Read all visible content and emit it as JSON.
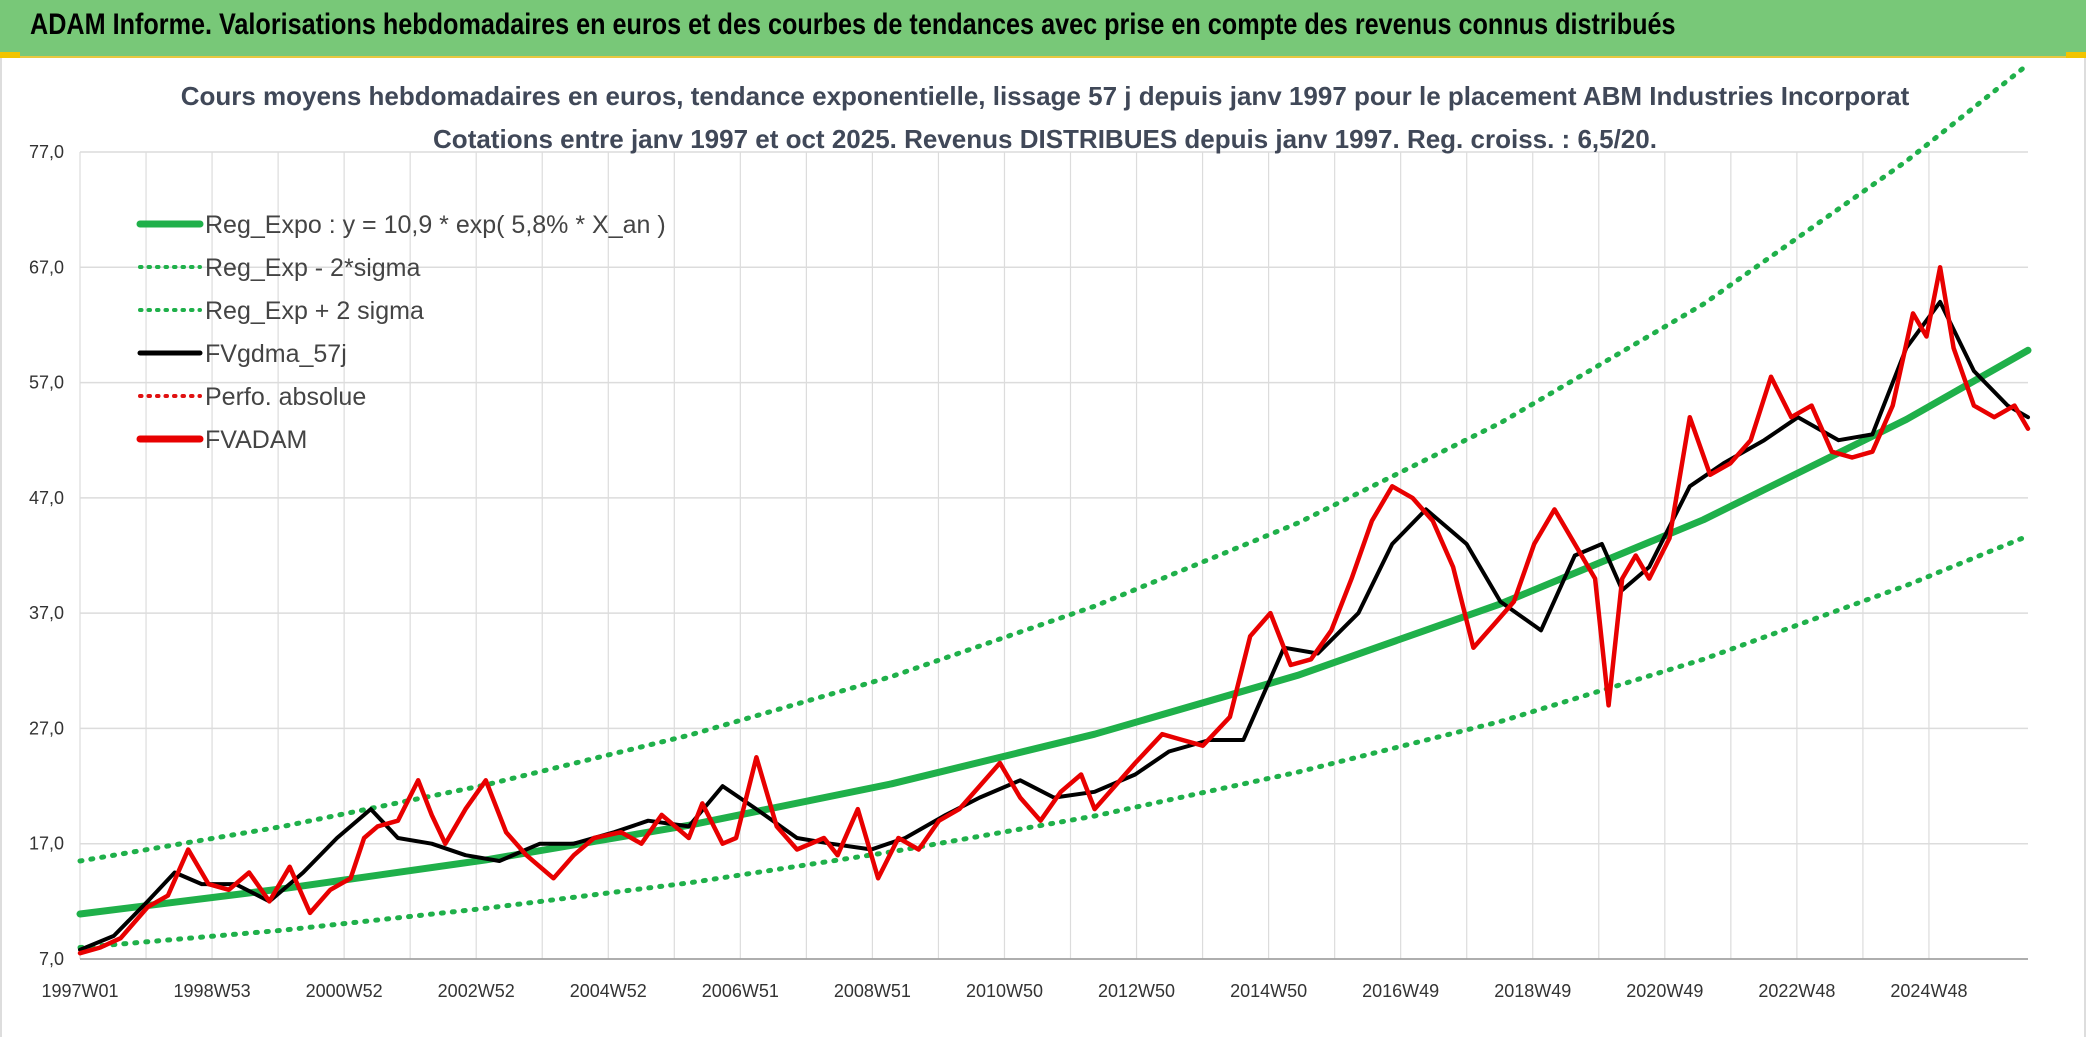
{
  "header": {
    "title": "ADAM Informe. Valorisations hebdomadaires en euros et des courbes de tendances avec prise en compte des revenus connus distribués"
  },
  "colors": {
    "banner": "#78c878",
    "trend": "#1fb04a",
    "sigma": "#1fb04a",
    "smooth": "#000000",
    "perf": "#e01010",
    "price": "#e80000",
    "grid": "#dcdcdc"
  },
  "chart_data": {
    "type": "line",
    "title_line1": "Cours moyens hebdomadaires en euros, tendance exponentielle, lissage 57 j depuis janv 1997 pour le placement ABM Industries Incorporat",
    "title_line2": "Cotations entre janv 1997 et oct 2025. Revenus DISTRIBUES depuis janv 1997. Reg. croiss. : 6,5/20.",
    "x_tick_labels": [
      "1997W01",
      "1998W53",
      "2000W52",
      "2002W52",
      "2004W52",
      "2006W51",
      "2008W51",
      "2010W50",
      "2012W50",
      "2014W50",
      "2016W49",
      "2018W49",
      "2020W49",
      "2022W48",
      "2024W48"
    ],
    "y_tick_labels": [
      "7,0",
      "17,0",
      "27,0",
      "37,0",
      "47,0",
      "57,0",
      "67,0",
      "77,0"
    ],
    "ylim": [
      7,
      77
    ],
    "xlim": [
      1997.0,
      2025.8
    ],
    "legend": [
      {
        "label": "Reg_Expo : y = 10,9 * exp( 5,8% *  X_an )",
        "style": "solid-thick",
        "color": "#1fb04a"
      },
      {
        "label": "Reg_Exp - 2*sigma",
        "style": "dotted",
        "color": "#1fb04a"
      },
      {
        "label": "Reg_Exp + 2 sigma",
        "style": "dotted",
        "color": "#1fb04a"
      },
      {
        "label": "FVgdma_57j",
        "style": "solid",
        "color": "#000000"
      },
      {
        "label": "Perfo. absolue",
        "style": "dotted",
        "color": "#e01010"
      },
      {
        "label": "FVADAM",
        "style": "solid-thick",
        "color": "#e80000"
      }
    ],
    "series": [
      {
        "name": "Reg_Expo : y = 10,9 * exp( 5,8% *  X_an )",
        "x": [
          1997.0,
          2000.0,
          2003.0,
          2006.0,
          2009.0,
          2012.0,
          2015.0,
          2018.0,
          2021.0,
          2024.0,
          2025.8
        ],
        "values": [
          10.9,
          13.1,
          15.6,
          18.6,
          22.2,
          26.5,
          31.6,
          37.8,
          45.1,
          53.8,
          59.8
        ]
      },
      {
        "name": "Reg_Exp - 2*sigma",
        "x": [
          1997.0,
          2000.0,
          2003.0,
          2006.0,
          2009.0,
          2012.0,
          2015.0,
          2018.0,
          2021.0,
          2024.0,
          2025.8
        ],
        "values": [
          8.0,
          9.5,
          11.4,
          13.6,
          16.3,
          19.4,
          23.2,
          27.6,
          33.0,
          39.4,
          43.7
        ]
      },
      {
        "name": "Reg_Exp + 2 sigma",
        "x": [
          1997.0,
          2000.0,
          2003.0,
          2006.0,
          2009.0,
          2012.0,
          2015.0,
          2018.0,
          2021.0,
          2024.0,
          2025.8
        ],
        "values": [
          15.5,
          18.5,
          22.1,
          26.4,
          31.5,
          37.6,
          44.8,
          53.5,
          63.8,
          76.2,
          84.6
        ]
      },
      {
        "name": "FVADAM",
        "x": [
          1997.0,
          1997.3,
          1997.6,
          1998.0,
          1998.3,
          1998.6,
          1998.9,
          1999.2,
          1999.5,
          1999.8,
          2000.1,
          2000.4,
          2000.7,
          2001.0,
          2001.2,
          2001.4,
          2001.7,
          2002.0,
          2002.2,
          2002.4,
          2002.7,
          2003.0,
          2003.3,
          2003.6,
          2004.0,
          2004.3,
          2004.6,
          2005.0,
          2005.3,
          2005.6,
          2006.0,
          2006.2,
          2006.5,
          2006.7,
          2007.0,
          2007.3,
          2007.6,
          2008.0,
          2008.2,
          2008.5,
          2008.8,
          2009.1,
          2009.4,
          2009.7,
          2010.0,
          2010.3,
          2010.6,
          2010.9,
          2011.2,
          2011.5,
          2011.8,
          2012.0,
          2012.3,
          2012.6,
          2013.0,
          2013.3,
          2013.6,
          2014.0,
          2014.3,
          2014.6,
          2014.9,
          2015.2,
          2015.5,
          2015.8,
          2016.1,
          2016.4,
          2016.7,
          2017.0,
          2017.3,
          2017.6,
          2017.9,
          2018.2,
          2018.5,
          2018.8,
          2019.1,
          2019.4,
          2019.6,
          2019.8,
          2020.0,
          2020.2,
          2020.5,
          2020.8,
          2021.1,
          2021.4,
          2021.7,
          2022.0,
          2022.3,
          2022.6,
          2022.9,
          2023.2,
          2023.5,
          2023.8,
          2024.1,
          2024.3,
          2024.5,
          2024.7,
          2025.0,
          2025.3,
          2025.6,
          2025.8
        ],
        "values": [
          7.5,
          8.0,
          8.8,
          11.5,
          12.5,
          16.5,
          13.5,
          13.0,
          14.5,
          12.0,
          15.0,
          11.0,
          13.0,
          14.0,
          17.5,
          18.5,
          19.0,
          22.5,
          19.5,
          17.0,
          20.0,
          22.5,
          18.0,
          16.0,
          14.0,
          16.0,
          17.5,
          18.0,
          17.0,
          19.5,
          17.5,
          20.5,
          17.0,
          17.5,
          24.5,
          18.5,
          16.5,
          17.5,
          16.0,
          20.0,
          14.0,
          17.5,
          16.5,
          19.0,
          20.0,
          22.0,
          24.0,
          21.0,
          19.0,
          21.5,
          23.0,
          20.0,
          22.0,
          24.0,
          26.5,
          26.0,
          25.5,
          28.0,
          35.0,
          37.0,
          32.5,
          33.0,
          35.5,
          40.0,
          45.0,
          48.0,
          47.0,
          45.0,
          41.0,
          34.0,
          36.0,
          38.0,
          43.0,
          46.0,
          43.0,
          40.0,
          29.0,
          40.0,
          42.0,
          40.0,
          43.5,
          54.0,
          49.0,
          50.0,
          52.0,
          57.5,
          54.0,
          55.0,
          51.0,
          50.5,
          51.0,
          55.0,
          63.0,
          61.0,
          67.0,
          60.0,
          55.0,
          54.0,
          55.0,
          53.0
        ]
      },
      {
        "name": "FVgdma_57j",
        "x": [
          1997.0,
          1997.5,
          1998.0,
          1998.4,
          1998.8,
          1999.3,
          1999.8,
          2000.3,
          2000.8,
          2001.3,
          2001.7,
          2002.2,
          2002.7,
          2003.2,
          2003.8,
          2004.3,
          2004.9,
          2005.4,
          2006.0,
          2006.5,
          2007.0,
          2007.6,
          2008.1,
          2008.7,
          2009.2,
          2009.8,
          2010.3,
          2010.9,
          2011.4,
          2012.0,
          2012.6,
          2013.1,
          2013.7,
          2014.2,
          2014.8,
          2015.3,
          2015.9,
          2016.4,
          2016.9,
          2017.5,
          2018.0,
          2018.6,
          2019.1,
          2019.5,
          2019.8,
          2020.2,
          2020.8,
          2021.3,
          2021.9,
          2022.4,
          2023.0,
          2023.5,
          2024.0,
          2024.5,
          2025.0,
          2025.5,
          2025.8
        ],
        "values": [
          7.8,
          9.0,
          12.0,
          14.5,
          13.5,
          13.5,
          12.0,
          14.5,
          17.5,
          20.0,
          17.5,
          17.0,
          16.0,
          15.5,
          17.0,
          17.0,
          18.0,
          19.0,
          18.5,
          22.0,
          20.0,
          17.5,
          17.0,
          16.5,
          17.5,
          19.5,
          21.0,
          22.5,
          21.0,
          21.5,
          23.0,
          25.0,
          26.0,
          26.0,
          34.0,
          33.5,
          37.0,
          43.0,
          46.0,
          43.0,
          38.0,
          35.5,
          42.0,
          43.0,
          39.0,
          41.0,
          48.0,
          50.0,
          52.0,
          54.0,
          52.0,
          52.5,
          60.0,
          64.0,
          58.0,
          55.0,
          54.0
        ]
      }
    ]
  }
}
